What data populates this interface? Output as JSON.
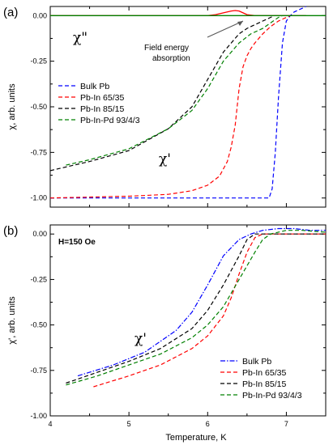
{
  "chart_data": [
    {
      "type": "line",
      "panel_label": "(a)",
      "ylabel": "χ, arb. units",
      "xlim": [
        4,
        7.5
      ],
      "ylim": [
        -1.05,
        0.05
      ],
      "yticks": [
        "0.00",
        "-0.25",
        "-0.50",
        "-0.75",
        "-1.00"
      ],
      "annotations": [
        "χ\"",
        "χ'",
        "Field energy",
        "absorption"
      ],
      "legend_position": "center-left",
      "series": [
        {
          "name": "Bulk Pb",
          "color": "#0000ff",
          "x": [
            4.0,
            5.0,
            6.0,
            6.6,
            6.78,
            6.82,
            6.86,
            6.9,
            6.95,
            7.0,
            7.05,
            7.1,
            7.2,
            7.25
          ],
          "y": [
            -1.0,
            -1.0,
            -1.0,
            -1.0,
            -1.0,
            -0.95,
            -0.75,
            -0.45,
            -0.15,
            -0.03,
            0.0,
            0.02,
            0.04,
            0.05
          ]
        },
        {
          "name": "Pb-In 65/35",
          "color": "#ff0000",
          "x": [
            4.0,
            5.0,
            5.5,
            5.8,
            6.0,
            6.15,
            6.25,
            6.3,
            6.35,
            6.4,
            6.45,
            6.5,
            6.55,
            6.6,
            6.7,
            6.8,
            6.9,
            7.0,
            7.05
          ],
          "y": [
            -1.0,
            -0.99,
            -0.98,
            -0.96,
            -0.93,
            -0.88,
            -0.8,
            -0.72,
            -0.6,
            -0.4,
            -0.28,
            -0.22,
            -0.18,
            -0.15,
            -0.1,
            -0.06,
            -0.03,
            -0.01,
            0.0
          ]
        },
        {
          "name": "Pb-In 85/15",
          "color": "#000000",
          "x": [
            4.0,
            4.5,
            5.0,
            5.5,
            5.8,
            6.0,
            6.2,
            6.4,
            6.5,
            6.6,
            6.7,
            6.8,
            6.85,
            6.9
          ],
          "y": [
            -0.85,
            -0.8,
            -0.74,
            -0.62,
            -0.5,
            -0.35,
            -0.2,
            -0.1,
            -0.07,
            -0.05,
            -0.03,
            -0.01,
            0.0,
            0.0
          ]
        },
        {
          "name": "Pb-In-Pd 93/4/3",
          "color": "#008000",
          "x": [
            4.2,
            4.5,
            5.0,
            5.5,
            5.8,
            6.0,
            6.2,
            6.4,
            6.55,
            6.7,
            6.8,
            6.9,
            6.95,
            7.0
          ],
          "y": [
            -0.82,
            -0.79,
            -0.73,
            -0.62,
            -0.52,
            -0.4,
            -0.25,
            -0.15,
            -0.1,
            -0.07,
            -0.04,
            -0.01,
            0.0,
            0.0
          ]
        },
        {
          "name": "",
          "color": "#ff0000",
          "solid": true,
          "x": [
            4.0,
            6.0,
            6.1,
            6.2,
            6.3,
            6.35,
            6.4,
            6.45,
            6.5,
            6.6,
            7.0,
            7.25
          ],
          "y": [
            0.0,
            0.0,
            0.005,
            0.015,
            0.025,
            0.028,
            0.025,
            0.015,
            0.005,
            0.0,
            0.0,
            0.0
          ]
        },
        {
          "name": "",
          "color": "#008000",
          "solid": true,
          "x": [
            4.0,
            6.8,
            7.5
          ],
          "y": [
            0.0,
            0.0,
            0.0
          ]
        }
      ]
    },
    {
      "type": "line",
      "panel_label": "(b)",
      "ylabel": "χ', arb. units",
      "xlabel": "Temperature, K",
      "xlim": [
        4,
        7.5
      ],
      "ylim": [
        -1.0,
        0.05
      ],
      "xticks": [
        "4",
        "5",
        "6",
        "7"
      ],
      "yticks": [
        "0.00",
        "-0.25",
        "-0.50",
        "-0.75",
        "-1.00"
      ],
      "annotations": [
        "H=150 Oe",
        "χ'"
      ],
      "legend_position": "bottom-right",
      "series": [
        {
          "name": "Bulk Pb",
          "color": "#0000ff",
          "style": "dashdot",
          "x": [
            4.35,
            4.8,
            5.2,
            5.6,
            5.8,
            6.0,
            6.2,
            6.4,
            6.55,
            6.7,
            6.9,
            7.1,
            7.3,
            7.5
          ],
          "y": [
            -0.78,
            -0.72,
            -0.65,
            -0.53,
            -0.43,
            -0.28,
            -0.12,
            -0.03,
            0.0,
            0.02,
            0.03,
            0.03,
            0.02,
            0.02
          ]
        },
        {
          "name": "Pb-In 65/35",
          "color": "#ff0000",
          "x": [
            4.55,
            5.0,
            5.4,
            5.8,
            6.0,
            6.2,
            6.3,
            6.4,
            6.5,
            6.6,
            6.7,
            7.0,
            7.3,
            7.5
          ],
          "y": [
            -0.84,
            -0.78,
            -0.72,
            -0.63,
            -0.56,
            -0.45,
            -0.35,
            -0.22,
            -0.1,
            -0.02,
            0.0,
            0.0,
            0.0,
            0.0
          ]
        },
        {
          "name": "Pb-In 85/15",
          "color": "#000000",
          "x": [
            4.2,
            4.6,
            5.0,
            5.4,
            5.8,
            6.0,
            6.2,
            6.4,
            6.5,
            6.6,
            6.7,
            7.0,
            7.5
          ],
          "y": [
            -0.82,
            -0.76,
            -0.7,
            -0.63,
            -0.52,
            -0.42,
            -0.28,
            -0.12,
            -0.03,
            0.0,
            0.0,
            0.0,
            0.0
          ]
        },
        {
          "name": "Pb-In-Pd 93/4/3",
          "color": "#008000",
          "x": [
            4.2,
            4.6,
            5.0,
            5.4,
            5.8,
            6.0,
            6.2,
            6.4,
            6.6,
            6.7,
            6.8,
            7.0,
            7.2,
            7.5
          ],
          "y": [
            -0.83,
            -0.78,
            -0.72,
            -0.66,
            -0.57,
            -0.5,
            -0.4,
            -0.25,
            -0.1,
            -0.03,
            0.0,
            0.02,
            0.02,
            0.01
          ]
        }
      ]
    }
  ]
}
